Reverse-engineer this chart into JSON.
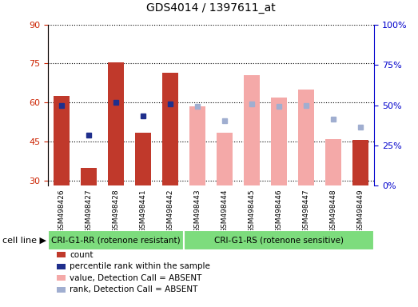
{
  "title": "GDS4014 / 1397611_at",
  "categories": [
    "GSM498426",
    "GSM498427",
    "GSM498428",
    "GSM498441",
    "GSM498442",
    "GSM498443",
    "GSM498444",
    "GSM498445",
    "GSM498446",
    "GSM498447",
    "GSM498448",
    "GSM498449"
  ],
  "ylim_left": [
    28,
    90
  ],
  "ylim_right": [
    0,
    100
  ],
  "yticks_left": [
    30,
    45,
    60,
    75,
    90
  ],
  "yticks_right": [
    0,
    25,
    50,
    75,
    100
  ],
  "group1_label": "CRI-G1-RR (rotenone resistant)",
  "group2_label": "CRI-G1-RS (rotenone sensitive)",
  "group1_count": 5,
  "group2_count": 7,
  "cell_line_label": "cell line",
  "bar_color_present": "#c0392b",
  "bar_color_absent": "#f4a9a8",
  "dot_color_present": "#1f2f8c",
  "dot_color_absent": "#a0aed0",
  "present_bars": {
    "0": 62.5,
    "1": 35.0,
    "2": 75.5,
    "3": 48.5,
    "4": 71.5,
    "11": 45.5
  },
  "absent_bars": {
    "5": 58.5,
    "6": 48.5,
    "7": 70.5,
    "8": 62.0,
    "9": 65.0,
    "10": 46.0
  },
  "present_dots": {
    "0": 59.0,
    "1": 47.5,
    "2": 60.0,
    "3": 55.0,
    "4": 59.5
  },
  "absent_dots": {
    "5": 58.5,
    "6": 53.0,
    "7": 59.5,
    "8": 58.5,
    "9": 59.0,
    "10": 53.5,
    "11": 50.5
  },
  "legend_items": [
    {
      "label": "count",
      "color": "#c0392b"
    },
    {
      "label": "percentile rank within the sample",
      "color": "#1f2f8c"
    },
    {
      "label": "value, Detection Call = ABSENT",
      "color": "#f4a9a8"
    },
    {
      "label": "rank, Detection Call = ABSENT",
      "color": "#a0aed0"
    }
  ],
  "group_bg": "#7ddc7d",
  "tick_area_bg": "#c8c8c8",
  "ylabel_left_color": "#cc2200",
  "ylabel_right_color": "#0000cc",
  "grid_color": "#000000"
}
